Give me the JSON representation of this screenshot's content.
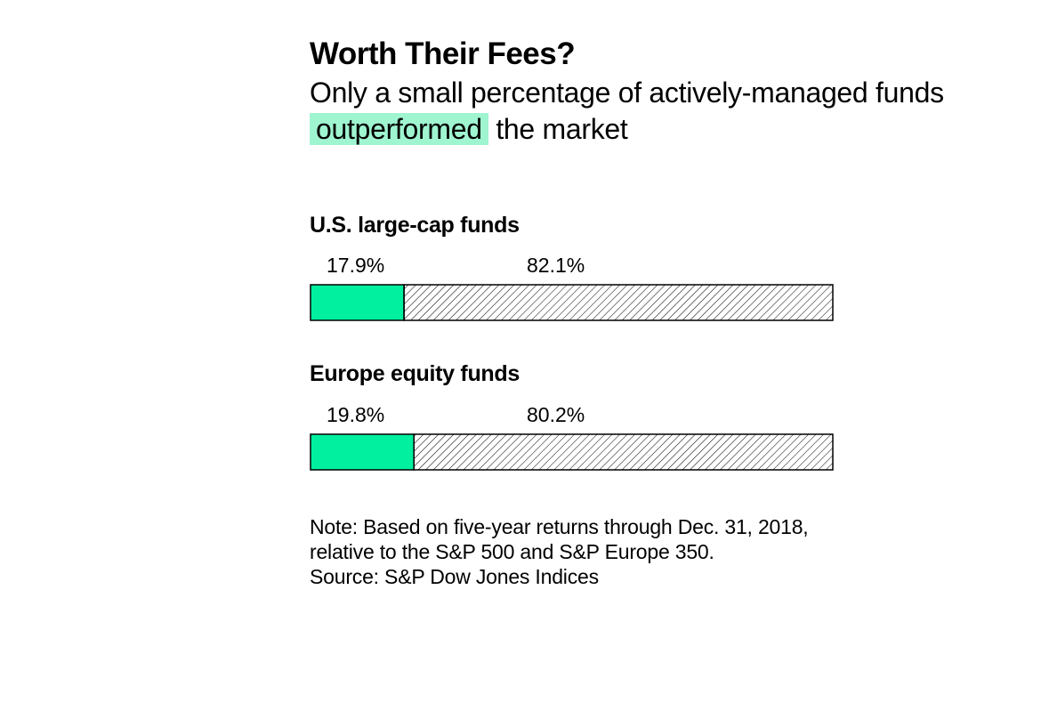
{
  "header": {
    "title": "Worth Their Fees?",
    "subtitle_before": "Only a small percentage of actively-managed funds",
    "subtitle_highlight": "outperformed",
    "subtitle_after": "the market"
  },
  "colors": {
    "outperformed": "#00f0a0",
    "highlight": "#9ff5d0",
    "underperformed_hatch": "#000000"
  },
  "chart_data": [
    {
      "type": "bar",
      "orientation": "horizontal-stacked",
      "title": "U.S. large-cap funds",
      "series": [
        {
          "value": 17.9,
          "label": "17.9%"
        },
        {
          "value": 82.1,
          "label": "82.1%"
        }
      ],
      "xlim": [
        0,
        100
      ]
    },
    {
      "type": "bar",
      "orientation": "horizontal-stacked",
      "title": "Europe equity funds",
      "series": [
        {
          "value": 19.8,
          "label": "19.8%"
        },
        {
          "value": 80.2,
          "label": "80.2%"
        }
      ],
      "xlim": [
        0,
        100
      ]
    }
  ],
  "footer": {
    "note": "Note: Based on five-year returns through Dec. 31, 2018, relative to the S&P 500 and S&P Europe 350.",
    "source": "Source: S&P Dow Jones Indices"
  }
}
